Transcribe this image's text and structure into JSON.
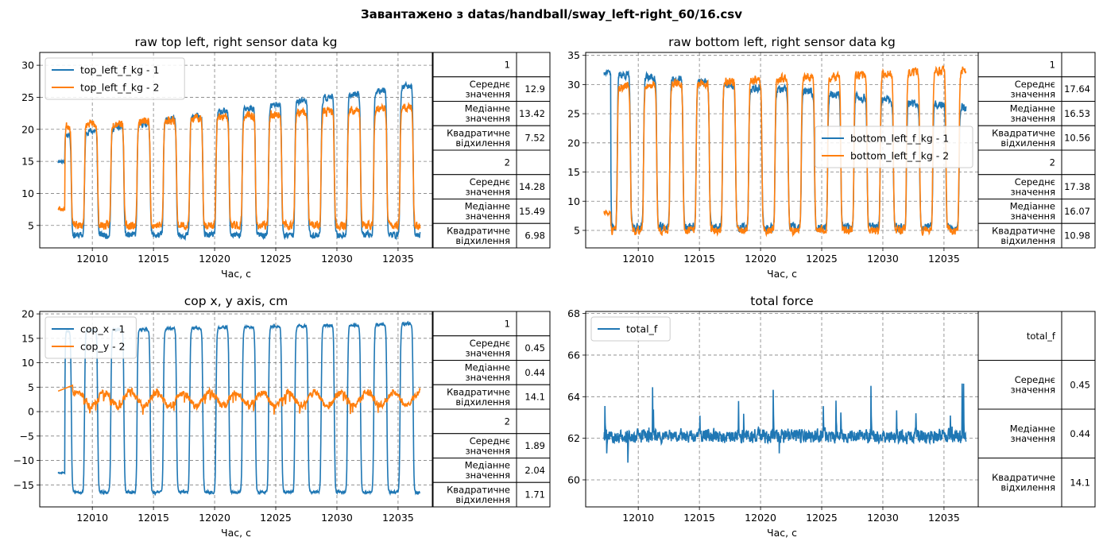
{
  "suptitle": "Завантажено з datas/handball/sway_left-right_60/16.csv",
  "chart_data": [
    {
      "type": "line",
      "title": "raw top left, right sensor data kg",
      "xlabel": "Час, с",
      "ylabel": "",
      "xlim": [
        12005.7,
        12037.8
      ],
      "ylim": [
        1.5,
        32
      ],
      "xticks": [
        12010,
        12015,
        12020,
        12025,
        12030,
        12035
      ],
      "yticks": [
        5,
        10,
        15,
        20,
        25,
        30
      ],
      "grid": true,
      "legend": "top-left",
      "series": [
        {
          "name": "top_left_f_kg - 1",
          "color": "#1f77b4",
          "gen": {
            "seed": 11,
            "base": 15,
            "low": 3.5,
            "high": 19,
            "highDrift": 8,
            "noise": 0.7,
            "phase": 0.0,
            "startMs": 12007.2,
            "kind": "lowfirst"
          }
        },
        {
          "name": "top_left_f_kg - 2",
          "color": "#ff7f0e",
          "gen": {
            "seed": 23,
            "base": 7.5,
            "low": 5,
            "high": 20.5,
            "highDrift": 3,
            "noise": 0.9,
            "phase": 0.5,
            "startMs": 12007.2,
            "kind": "highfirst"
          }
        }
      ],
      "table": [
        {
          "label": "1",
          "value": ""
        },
        {
          "label": "Середнє значення",
          "value": "12.9"
        },
        {
          "label": "Медіанне значення",
          "value": "13.42"
        },
        {
          "label": "Квадратичне відхилення",
          "value": "7.52"
        },
        {
          "label": "2",
          "value": ""
        },
        {
          "label": "Середнє значення",
          "value": "14.28"
        },
        {
          "label": "Медіанне значення",
          "value": "15.49"
        },
        {
          "label": "Квадратичне відхилення",
          "value": "6.98"
        }
      ]
    },
    {
      "type": "line",
      "title": "raw bottom left, right sensor data  kg",
      "xlabel": "Час, с",
      "ylabel": "",
      "xlim": [
        12005.7,
        12037.8
      ],
      "ylim": [
        2,
        35.5
      ],
      "xticks": [
        12010,
        12015,
        12020,
        12025,
        12030,
        12035
      ],
      "yticks": [
        5,
        10,
        15,
        20,
        25,
        30,
        35
      ],
      "grid": true,
      "legend": "center-right",
      "series": [
        {
          "name": "bottom_left_f_kg - 1",
          "color": "#1f77b4",
          "gen": {
            "seed": 37,
            "base": 32,
            "low": 5.5,
            "high": 32,
            "highDrift": -6,
            "noise": 1.0,
            "phase": 0.0,
            "startMs": 12007.2,
            "kind": "highfirst"
          }
        },
        {
          "name": "bottom_left_f_kg - 2",
          "color": "#ff7f0e",
          "gen": {
            "seed": 41,
            "base": 8,
            "low": 5,
            "high": 29.5,
            "highDrift": 3,
            "noise": 1.0,
            "phase": 0.5,
            "startMs": 12007.2,
            "kind": "lowfirst"
          }
        }
      ],
      "table": [
        {
          "label": "1",
          "value": ""
        },
        {
          "label": "Середнє значення",
          "value": "17.64"
        },
        {
          "label": "Медіанне значення",
          "value": "16.53"
        },
        {
          "label": "Квадратичне відхилення",
          "value": "10.56"
        },
        {
          "label": "2",
          "value": ""
        },
        {
          "label": "Середнє значення",
          "value": "17.38"
        },
        {
          "label": "Медіанне значення",
          "value": "16.07"
        },
        {
          "label": "Квадратичне відхилення",
          "value": "10.98"
        }
      ]
    },
    {
      "type": "line",
      "title": "cop x, y axis, cm",
      "xlabel": "Час, с",
      "ylabel": "",
      "xlim": [
        12005.7,
        12037.8
      ],
      "ylim": [
        -19.5,
        20.5
      ],
      "xticks": [
        12010,
        12015,
        12020,
        12025,
        12030,
        12035
      ],
      "yticks": [
        -15,
        -10,
        -5,
        0,
        5,
        10,
        15,
        20
      ],
      "grid": true,
      "legend": "top-left",
      "series": [
        {
          "name": "cop_x - 1",
          "color": "#1f77b4",
          "gen": {
            "seed": 53,
            "base": -12.5,
            "low": -16.5,
            "high": 16.5,
            "highDrift": 1.5,
            "noise": 0.4,
            "phase": 0.0,
            "startMs": 12007.2,
            "kind": "lowfirst"
          }
        },
        {
          "name": "cop_y - 2",
          "color": "#ff7f0e",
          "gen": {
            "seed": 67,
            "base": 4.2,
            "low": 0.8,
            "high": 3.6,
            "highDrift": 0,
            "noise": 0.9,
            "phase": 0.5,
            "startMs": 12007.2,
            "kind": "small"
          }
        }
      ],
      "table": [
        {
          "label": "1",
          "value": ""
        },
        {
          "label": "Середнє значення",
          "value": "0.45"
        },
        {
          "label": "Медіанне значення",
          "value": "0.44"
        },
        {
          "label": "Квадратичне відхилення",
          "value": "14.1"
        },
        {
          "label": "2",
          "value": ""
        },
        {
          "label": "Середнє значення",
          "value": "1.89"
        },
        {
          "label": "Медіанне значення",
          "value": "2.04"
        },
        {
          "label": "Квадратичне відхилення",
          "value": "1.71"
        }
      ]
    },
    {
      "type": "line",
      "title": "total force",
      "xlabel": "Час, с",
      "ylabel": "",
      "xlim": [
        12005.7,
        12037.8
      ],
      "ylim": [
        58.7,
        68.1
      ],
      "xticks": [
        12010,
        12015,
        12020,
        12025,
        12030,
        12035
      ],
      "yticks": [
        60,
        62,
        64,
        66,
        68
      ],
      "grid": true,
      "legend": "top-left",
      "series": [
        {
          "name": "total_f",
          "color": "#1f77b4",
          "gen": {
            "seed": 79,
            "base": 62.1,
            "low": 62.0,
            "high": 62.0,
            "highDrift": 0,
            "noise": 0.45,
            "phase": 0.0,
            "startMs": 12007.2,
            "kind": "spiky"
          }
        }
      ],
      "table": [
        {
          "label": "total_f",
          "value": ""
        },
        {
          "label": "Середнє значення",
          "value": "0.45"
        },
        {
          "label": "Медіанне значення",
          "value": "0.44"
        },
        {
          "label": "Квадратичне відхилення",
          "value": "14.1"
        }
      ]
    }
  ]
}
